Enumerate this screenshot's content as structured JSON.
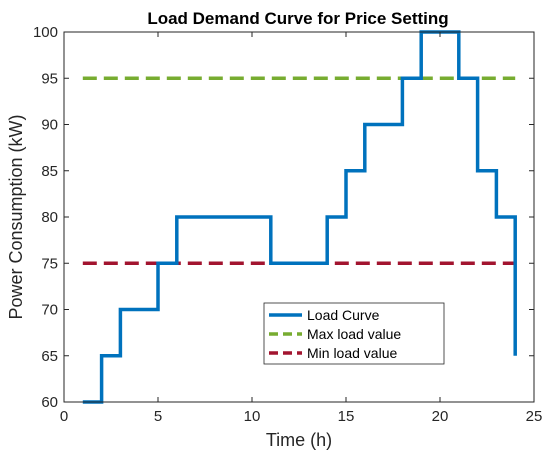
{
  "chart_data": {
    "type": "line",
    "title": "Load Demand Curve for Price Setting",
    "xlabel": "Time (h)",
    "ylabel": "Power Consumption (kW)",
    "xlim": [
      0,
      25
    ],
    "ylim": [
      60,
      100
    ],
    "xticks": [
      0,
      5,
      10,
      15,
      20,
      25
    ],
    "yticks": [
      60,
      65,
      70,
      75,
      80,
      85,
      90,
      95,
      100
    ],
    "grid": false,
    "legend_position": "lower-middle",
    "series": [
      {
        "name": "Load Curve",
        "style": "solid-stairs",
        "color": "#0072BD",
        "x": [
          1,
          2,
          3,
          4,
          5,
          6,
          7,
          8,
          9,
          10,
          11,
          12,
          13,
          14,
          15,
          16,
          17,
          18,
          19,
          20,
          21,
          22,
          23,
          24
        ],
        "values": [
          60,
          65,
          70,
          70,
          75,
          80,
          80,
          80,
          80,
          80,
          75,
          75,
          75,
          80,
          85,
          90,
          90,
          95,
          100,
          100,
          95,
          85,
          80,
          65
        ]
      },
      {
        "name": "Max  load value",
        "style": "dashed",
        "color": "#77AC30",
        "x": [
          1,
          24
        ],
        "values": [
          95,
          95
        ]
      },
      {
        "name": "Min load value",
        "style": "dashed",
        "color": "#A2142F",
        "x": [
          1,
          24
        ],
        "values": [
          75,
          75
        ]
      }
    ]
  }
}
